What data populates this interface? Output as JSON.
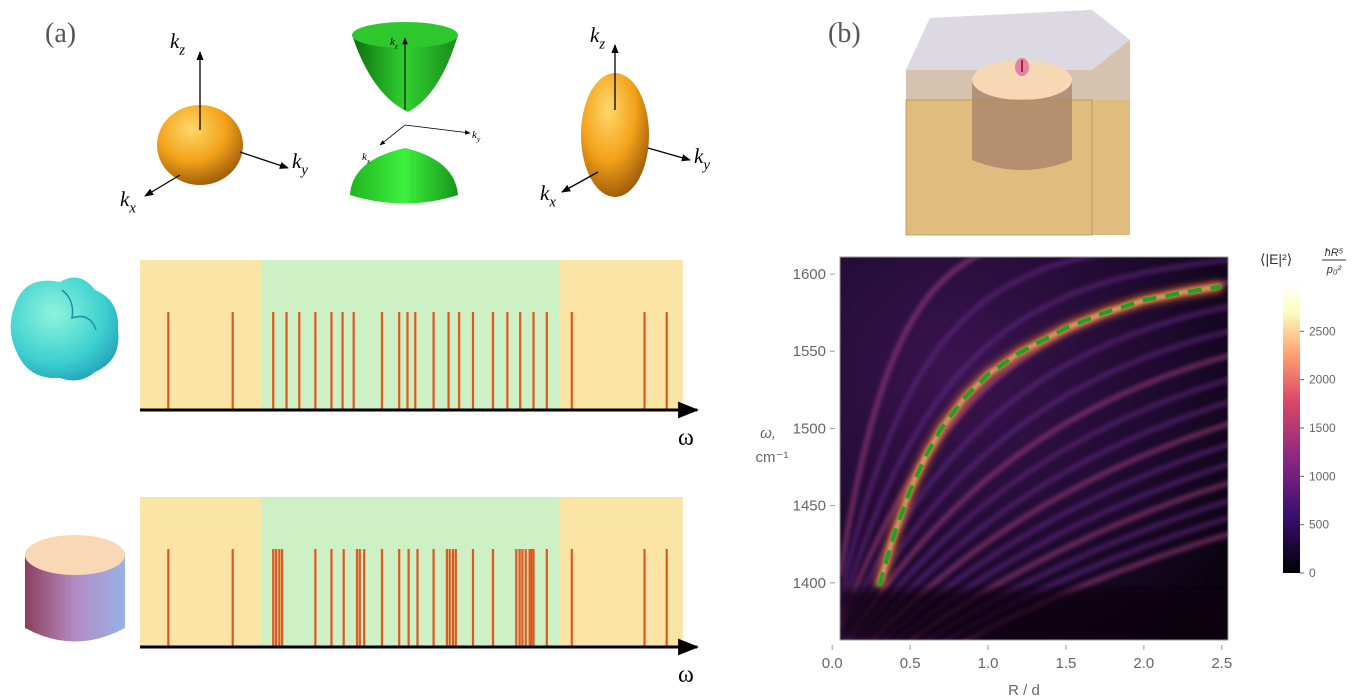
{
  "panel_labels": [
    "(a)",
    "(b)"
  ],
  "dispersion": [
    {
      "axes": [
        {
          "main": "k",
          "sub": "z"
        },
        {
          "main": "k",
          "sub": "y"
        },
        {
          "main": "k",
          "sub": "x"
        }
      ]
    },
    {
      "axes": [
        {
          "main": "k",
          "sub": "z"
        },
        {
          "main": "k",
          "sub": "y"
        },
        {
          "main": "k",
          "sub": "x"
        }
      ]
    },
    {
      "axes": [
        {
          "main": "k",
          "sub": "z"
        },
        {
          "main": "k",
          "sub": "y"
        },
        {
          "main": "k",
          "sub": "x"
        }
      ]
    }
  ],
  "chart_data": [
    {
      "type": "spectrum",
      "xlabel": "ω",
      "xlim": [
        0,
        100
      ],
      "bands": [
        {
          "range": [
            0,
            21.8
          ],
          "color": "#fbe5a6"
        },
        {
          "range": [
            21.8,
            75.6
          ],
          "color": "#cdf0c4"
        },
        {
          "range": [
            75.6,
            97.8
          ],
          "color": "#fbe5a6"
        }
      ],
      "line_color": "#e0581e",
      "lines": [
        5.1,
        16.7,
        24,
        26.4,
        28.7,
        31.6,
        34.5,
        36.5,
        38.5,
        43.6,
        46.7,
        48.2,
        49.6,
        52.9,
        55.6,
        57.5,
        60,
        63.6,
        66.2,
        68.5,
        70.9,
        73.3,
        77.8,
        90.9,
        94.9
      ]
    },
    {
      "type": "spectrum",
      "xlabel": "ω",
      "xlim": [
        0,
        100
      ],
      "bands": [
        {
          "range": [
            0,
            21.8
          ],
          "color": "#fbe5a6"
        },
        {
          "range": [
            21.8,
            75.6
          ],
          "color": "#cdf0c4"
        },
        {
          "range": [
            75.6,
            97.8
          ],
          "color": "#fbe5a6"
        }
      ],
      "line_color": "#e0581e",
      "lines": [
        5.1,
        16.7,
        24,
        24.5,
        25.1,
        25.6,
        31.6,
        34.5,
        36.7,
        39.1,
        39.6,
        40.4,
        43.6,
        46.7,
        48.4,
        50,
        52.9,
        55.3,
        55.8,
        56.4,
        56.9,
        60,
        63.6,
        67.8,
        68.4,
        68.9,
        69.5,
        70.2,
        70.5,
        70.9,
        73.3,
        77.8,
        90.9,
        94.9
      ]
    },
    {
      "type": "heatmap",
      "xlabel": "R / d",
      "ylabel": [
        "ω,",
        "cm⁻¹"
      ],
      "xlim": [
        0.05,
        2.54
      ],
      "ylim": [
        1363,
        1611
      ],
      "xticks": [
        {
          "value": 0,
          "label": "0.0"
        },
        {
          "value": 0.5,
          "label": "0.5"
        },
        {
          "value": 1,
          "label": "1.0"
        },
        {
          "value": 1.5,
          "label": "1.5"
        },
        {
          "value": 2,
          "label": "2.0"
        },
        {
          "value": 2.5,
          "label": "2.5"
        }
      ],
      "yticks": [
        1400,
        1450,
        1500,
        1550,
        1600
      ],
      "colorbar": {
        "label": "⟨|E|²⟩",
        "numerator": "ħR⁵",
        "denominator": "p₀²",
        "lim": [
          0,
          3000
        ],
        "ticks": [
          0,
          500,
          1000,
          1500,
          2000,
          2500
        ]
      },
      "series": [
        {
          "color": "#1fa31f",
          "x": [
            0.3,
            0.4,
            0.5,
            0.6,
            0.7,
            0.85,
            1.0,
            1.2,
            1.5,
            1.75,
            2.0,
            2.25,
            2.5
          ],
          "values": [
            1398,
            1432,
            1460,
            1482,
            1500,
            1520,
            1535,
            1549,
            1565,
            1575,
            1583,
            1588,
            1592
          ]
        }
      ]
    }
  ]
}
